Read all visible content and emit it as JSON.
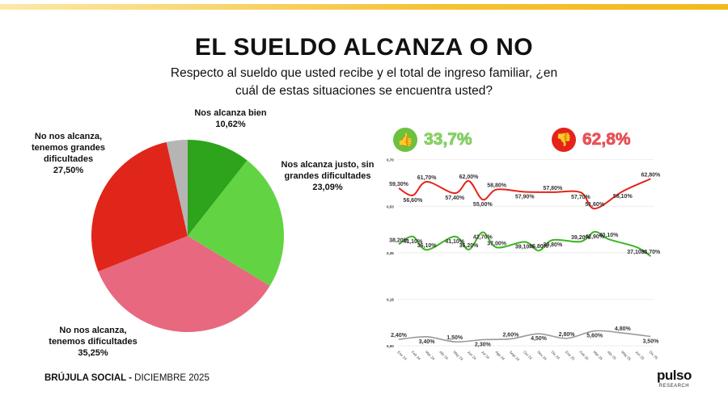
{
  "header": {
    "title": "EL SUELDO ALCANZA O NO",
    "subtitle": "Respecto al sueldo que usted recibe y el total de ingreso familiar, ¿en cuál de estas situaciones se encuentra usted?"
  },
  "kpis": {
    "positive": {
      "value": "33,7%",
      "icon": "thumbs-up-icon",
      "color": "#8fd86a"
    },
    "negative": {
      "value": "62,8%",
      "icon": "thumbs-down-icon",
      "color": "#f0545a"
    }
  },
  "footer": {
    "brand": "BRÚJULA SOCIAL - ",
    "period": "DICIEMBRE 2025",
    "logo": "pulso",
    "logo_sub": "RESEARCH"
  },
  "chart_data": [
    {
      "type": "pie",
      "start": "top",
      "direction": "clockwise",
      "slices": [
        {
          "label": "Nos alcanza bien",
          "value_label": "10,62%",
          "value": 10.62,
          "color": "#2ea31c"
        },
        {
          "label": "Nos alcanza justo, sin grandes dificultades",
          "value_label": "23,09%",
          "value": 23.09,
          "color": "#62d443"
        },
        {
          "label": "No nos alcanza, tenemos dificultades",
          "value_label": "35,25%",
          "value": 35.25,
          "color": "#e8687f"
        },
        {
          "label": "No nos alcanza, tenemos grandes dificultades",
          "value_label": "27,50%",
          "value": 27.5,
          "color": "#e0261a"
        },
        {
          "label": "",
          "value_label": "",
          "value": 3.54,
          "color": "#b5b5b5"
        }
      ]
    },
    {
      "type": "line",
      "ylim": [
        0,
        0.7
      ],
      "yticks": [
        "0,00",
        "0,18",
        "0,35",
        "0,53",
        "0,70"
      ],
      "ytick_values": [
        0,
        0.175,
        0.35,
        0.525,
        0.7
      ],
      "categories": [
        "Ene 24",
        "Feb 24",
        "Mar 24",
        "Abr 24",
        "May 24",
        "Jun 24",
        "Jul 24",
        "Ago 24",
        "Sept 24",
        "Oct 24",
        "Nov 24",
        "Dic 24",
        "Ene 25",
        "Feb 25",
        "Mar 25",
        "Abr 25",
        "May 25",
        "Jun 25",
        "Dic 25"
      ],
      "series": [
        {
          "color": "#e5231b",
          "points": [
            [
              0,
              59.3,
              "59,30%"
            ],
            [
              1,
              56.6,
              "56,60%"
            ],
            [
              2,
              61.7,
              "61,70%"
            ],
            [
              4,
              57.4,
              "57,40%"
            ],
            [
              5,
              62.0,
              "62,00%"
            ],
            [
              6,
              55.0,
              "55,00%"
            ],
            [
              7,
              58.8,
              "58,80%"
            ],
            [
              9,
              57.9,
              "57,90%"
            ],
            [
              11,
              57.8,
              "57,80%"
            ],
            [
              13,
              57.7,
              "57,70%"
            ],
            [
              14,
              51.6,
              "51,60%"
            ],
            [
              16,
              58.1,
              "58,10%"
            ],
            [
              18,
              62.8,
              "62,80%"
            ]
          ]
        },
        {
          "color": "#3cb521",
          "points": [
            [
              0,
              38.2,
              "38,20%"
            ],
            [
              1,
              41.1,
              "41,10%"
            ],
            [
              2,
              36.1,
              "36,10%"
            ],
            [
              4,
              41.1,
              "41,10%"
            ],
            [
              5,
              36.2,
              "36,20%"
            ],
            [
              6,
              42.7,
              "42,70%"
            ],
            [
              7,
              37.0,
              "37,00%"
            ],
            [
              9,
              39.1,
              "39,10%"
            ],
            [
              10,
              35.8,
              "35,80%"
            ],
            [
              11,
              39.8,
              "39,80%"
            ],
            [
              13,
              39.2,
              "39,20%"
            ],
            [
              14,
              42.9,
              "42,90%"
            ],
            [
              15,
              40.1,
              "40,10%"
            ],
            [
              17,
              37.1,
              "37,10%"
            ],
            [
              18,
              33.7,
              "33,70%"
            ]
          ]
        },
        {
          "color": "#9a9a9a",
          "points": [
            [
              0,
              2.4,
              "2,40%"
            ],
            [
              2,
              3.4,
              "3,40%"
            ],
            [
              4,
              1.5,
              "1,50%"
            ],
            [
              6,
              2.3,
              "2,30%"
            ],
            [
              8,
              2.6,
              "2,60%"
            ],
            [
              10,
              4.5,
              "4,50%"
            ],
            [
              12,
              2.8,
              "2,80%"
            ],
            [
              14,
              5.6,
              "5,60%"
            ],
            [
              16,
              4.8,
              "4,80%"
            ],
            [
              18,
              3.5,
              "3,50%"
            ]
          ]
        }
      ]
    }
  ]
}
